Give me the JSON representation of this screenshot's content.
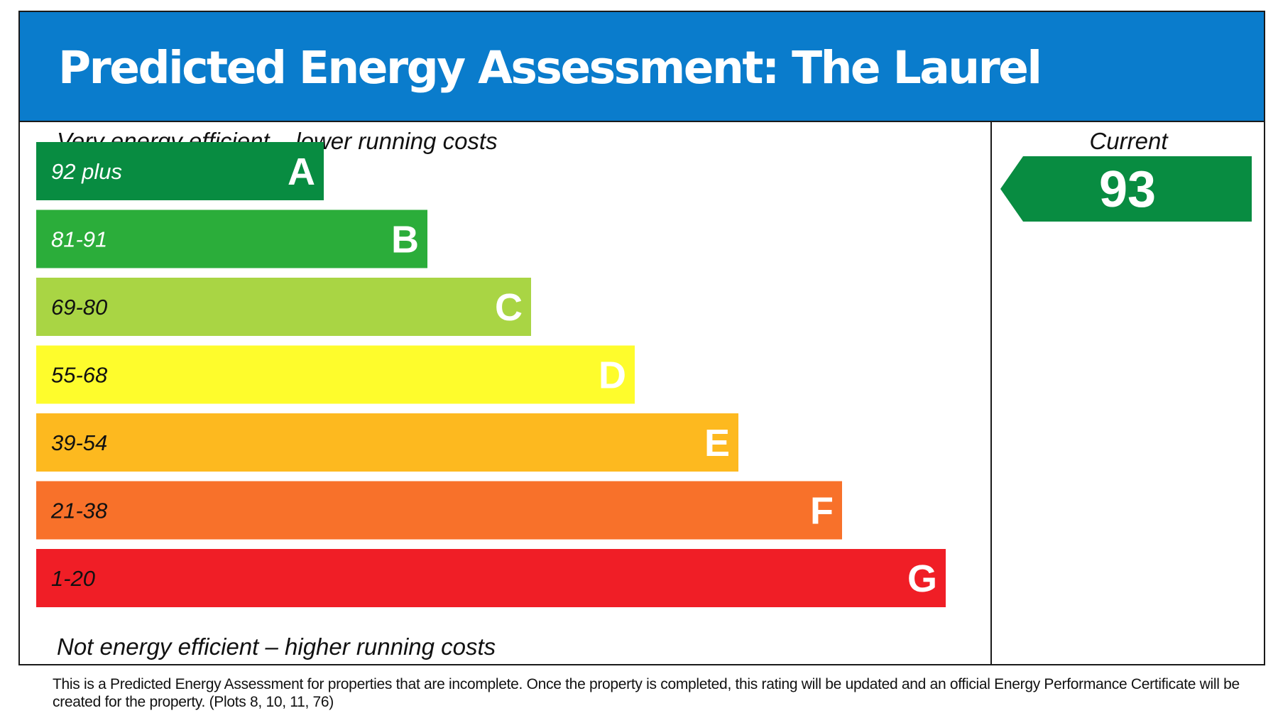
{
  "title": "Predicted Energy Assessment: The Laurel",
  "notes": {
    "top": "Very energy efficient – lower running costs",
    "bottom": "Not energy efficient – higher running costs"
  },
  "current": {
    "label": "Current",
    "value": 93,
    "color": "#088c41"
  },
  "footnote": "This is a Predicted Energy Assessment for properties that are incomplete. Once the property is completed, this rating will be updated and an official Energy Performance Certificate will be created for the property. (Plots 8, 10, 11, 76)",
  "chart_data": {
    "type": "bar",
    "categories": [
      "A",
      "B",
      "C",
      "D",
      "E",
      "F",
      "G"
    ],
    "ranges": [
      "92 plus",
      "81-91",
      "69-80",
      "55-68",
      "39-54",
      "21-38",
      "1-20"
    ],
    "colors": [
      "#088c41",
      "#2bad3a",
      "#a9d544",
      "#fefc2c",
      "#fdb91f",
      "#f8712a",
      "#f01e26"
    ],
    "range_text_colors": [
      "#ffffff",
      "#ffffff",
      "#111111",
      "#111111",
      "#111111",
      "#111111",
      "#111111"
    ],
    "current_rating": 93,
    "current_band": "A"
  }
}
